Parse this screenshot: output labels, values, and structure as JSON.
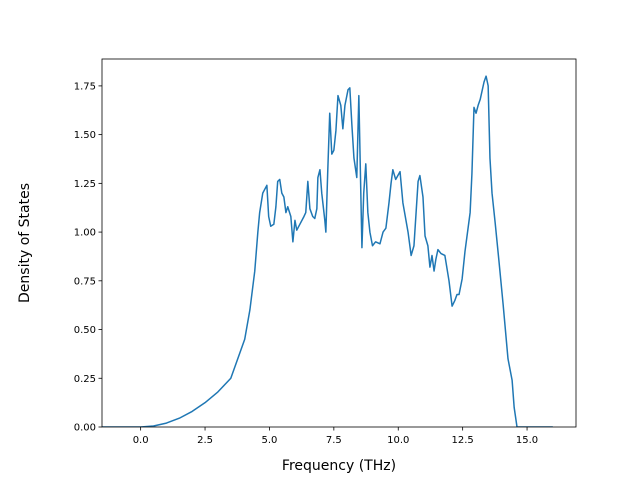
{
  "chart_data": {
    "type": "line",
    "xlabel": "Frequency (THz)",
    "ylabel": "Density of States",
    "xlim": [
      -1.5,
      16.9
    ],
    "ylim": [
      0,
      1.888
    ],
    "xticks": [
      {
        "value": 0,
        "label": "0.0"
      },
      {
        "value": 2.5,
        "label": "2.5"
      },
      {
        "value": 5,
        "label": "5.0"
      },
      {
        "value": 7.5,
        "label": "7.5"
      },
      {
        "value": 10,
        "label": "10.0"
      },
      {
        "value": 12.5,
        "label": "12.5"
      },
      {
        "value": 15,
        "label": "15.0"
      }
    ],
    "yticks": [
      {
        "value": 0,
        "label": "0.00"
      },
      {
        "value": 0.25,
        "label": "0.25"
      },
      {
        "value": 0.5,
        "label": "0.50"
      },
      {
        "value": 0.75,
        "label": "0.75"
      },
      {
        "value": 1,
        "label": "1.00"
      },
      {
        "value": 1.25,
        "label": "1.25"
      },
      {
        "value": 1.5,
        "label": "1.50"
      },
      {
        "value": 1.75,
        "label": "1.75"
      }
    ],
    "series": [
      {
        "color": "#1f77b4",
        "x": [
          -1.5,
          0,
          0.5,
          1,
          1.5,
          2,
          2.5,
          3,
          3.5,
          4.04,
          4.24,
          4.43,
          4.55,
          4.62,
          4.74,
          4.9,
          4.97,
          5.05,
          5.17,
          5.25,
          5.32,
          5.4,
          5.48,
          5.56,
          5.64,
          5.71,
          5.83,
          5.91,
          5.99,
          6.06,
          6.18,
          6.34,
          6.41,
          6.49,
          6.57,
          6.68,
          6.76,
          6.84,
          6.88,
          6.96,
          7.03,
          7.15,
          7.19,
          7.26,
          7.34,
          7.42,
          7.5,
          7.58,
          7.66,
          7.77,
          7.85,
          7.93,
          8.05,
          8.12,
          8.2,
          8.28,
          8.39,
          8.47,
          8.59,
          8.66,
          8.74,
          8.82,
          8.9,
          9.0,
          9.12,
          9.29,
          9.41,
          9.52,
          9.64,
          9.72,
          9.79,
          9.9,
          10.07,
          10.18,
          10.38,
          10.5,
          10.61,
          10.77,
          10.84,
          10.96,
          11.04,
          11.15,
          11.23,
          11.31,
          11.39,
          11.46,
          11.54,
          11.66,
          11.81,
          11.97,
          12.09,
          12.2,
          12.28,
          12.36,
          12.48,
          12.59,
          12.79,
          12.86,
          12.94,
          13.02,
          13.1,
          13.18,
          13.33,
          13.41,
          13.49,
          13.56,
          13.64,
          13.76,
          13.91,
          14.07,
          14.26,
          14.42,
          14.5,
          14.61,
          16.0
        ],
        "values": [
          0,
          0,
          0.005,
          0.02,
          0.045,
          0.08,
          0.125,
          0.18,
          0.25,
          0.45,
          0.6,
          0.8,
          1.0,
          1.1,
          1.2,
          1.24,
          1.08,
          1.03,
          1.04,
          1.13,
          1.26,
          1.27,
          1.2,
          1.18,
          1.1,
          1.13,
          1.08,
          0.95,
          1.06,
          1.01,
          1.04,
          1.08,
          1.1,
          1.26,
          1.12,
          1.08,
          1.07,
          1.12,
          1.28,
          1.32,
          1.2,
          1.06,
          1.0,
          1.3,
          1.61,
          1.4,
          1.42,
          1.52,
          1.7,
          1.65,
          1.53,
          1.65,
          1.73,
          1.74,
          1.55,
          1.38,
          1.28,
          1.7,
          0.92,
          1.2,
          1.35,
          1.1,
          1.0,
          0.93,
          0.95,
          0.94,
          1.0,
          1.02,
          1.15,
          1.25,
          1.32,
          1.27,
          1.31,
          1.15,
          1.0,
          0.88,
          0.93,
          1.26,
          1.29,
          1.18,
          0.98,
          0.93,
          0.82,
          0.88,
          0.8,
          0.86,
          0.91,
          0.89,
          0.88,
          0.75,
          0.62,
          0.65,
          0.68,
          0.68,
          0.76,
          0.9,
          1.1,
          1.3,
          1.64,
          1.61,
          1.65,
          1.68,
          1.77,
          1.8,
          1.75,
          1.38,
          1.2,
          1.05,
          0.85,
          0.63,
          0.35,
          0.24,
          0.1,
          0,
          0
        ]
      }
    ]
  }
}
